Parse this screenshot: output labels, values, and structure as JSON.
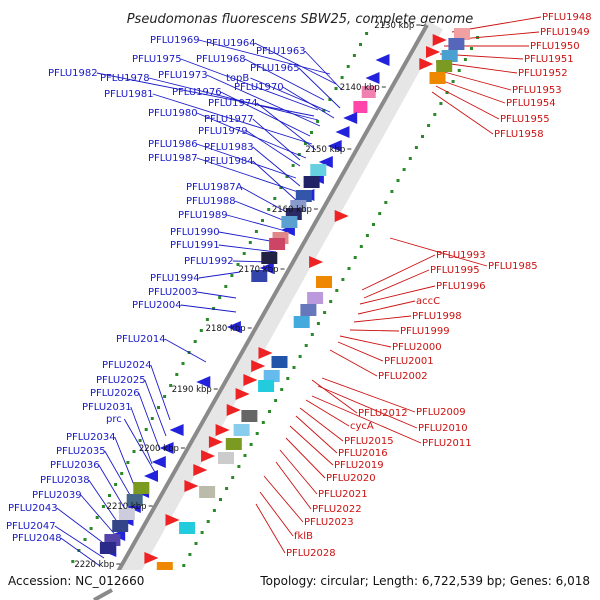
{
  "title": "Pseudomonas fluorescens SBW25, complete genome",
  "accession": "Accession: NC_012660",
  "topology": "Topology: circular; Length: 6,722,539 bp; Genes: 6,018",
  "colors": {
    "left_labels": "#1a1ac8",
    "right_labels": "#cc1111",
    "backbone": "#8a8a8a",
    "gc_dots": "#2a8a2a"
  },
  "ticks": [
    "2130 kbp",
    "2140 kbp",
    "2150 kbp",
    "2160 kbp",
    "2170 kbp",
    "2180 kbp",
    "2190 kbp",
    "2200 kbp",
    "2210 kbp",
    "2220 kbp"
  ],
  "left_labels": [
    "PFLU1969",
    "PFLU1964",
    "PFLU1963",
    "PFLU1968",
    "PFLU1965",
    "PFLU1975",
    "PFLU1982",
    "PFLU1978",
    "PFLU1973",
    "topB",
    "PFLU1970",
    "PFLU1976",
    "PFLU1981",
    "PFLU1974",
    "PFLU1980",
    "PFLU1977",
    "PFLU1979",
    "PFLU1986",
    "PFLU1983",
    "PFLU1987",
    "PFLU1984",
    "PFLU1987A",
    "PFLU1988",
    "PFLU1989",
    "PFLU1990",
    "PFLU1991",
    "PFLU1992",
    "PFLU1994",
    "PFLU2003",
    "PFLU2004",
    "PFLU2014",
    "PFLU2024",
    "PFLU2025",
    "PFLU2026",
    "PFLU2031",
    "prc",
    "PFLU2034",
    "PFLU2035",
    "PFLU2036",
    "PFLU2038",
    "PFLU2039",
    "PFLU2043",
    "PFLU2047",
    "PFLU2048"
  ],
  "right_labels": [
    "PFLU1948",
    "PFLU1949",
    "PFLU1950",
    "PFLU1951",
    "PFLU1952",
    "PFLU1953",
    "PFLU1954",
    "PFLU1955",
    "PFLU1958",
    "PFLU1993",
    "PFLU1985",
    "PFLU1995",
    "PFLU1996",
    "accC",
    "PFLU1998",
    "PFLU1999",
    "PFLU2000",
    "PFLU2001",
    "PFLU2002",
    "PFLU2012",
    "PFLU2009",
    "PFLU2010",
    "cycA",
    "PFLU2011",
    "PFLU2015",
    "PFLU2016",
    "PFLU2019",
    "PFLU2020",
    "PFLU2021",
    "PFLU2022",
    "PFLU2023",
    "fklB",
    "PFLU2028"
  ]
}
